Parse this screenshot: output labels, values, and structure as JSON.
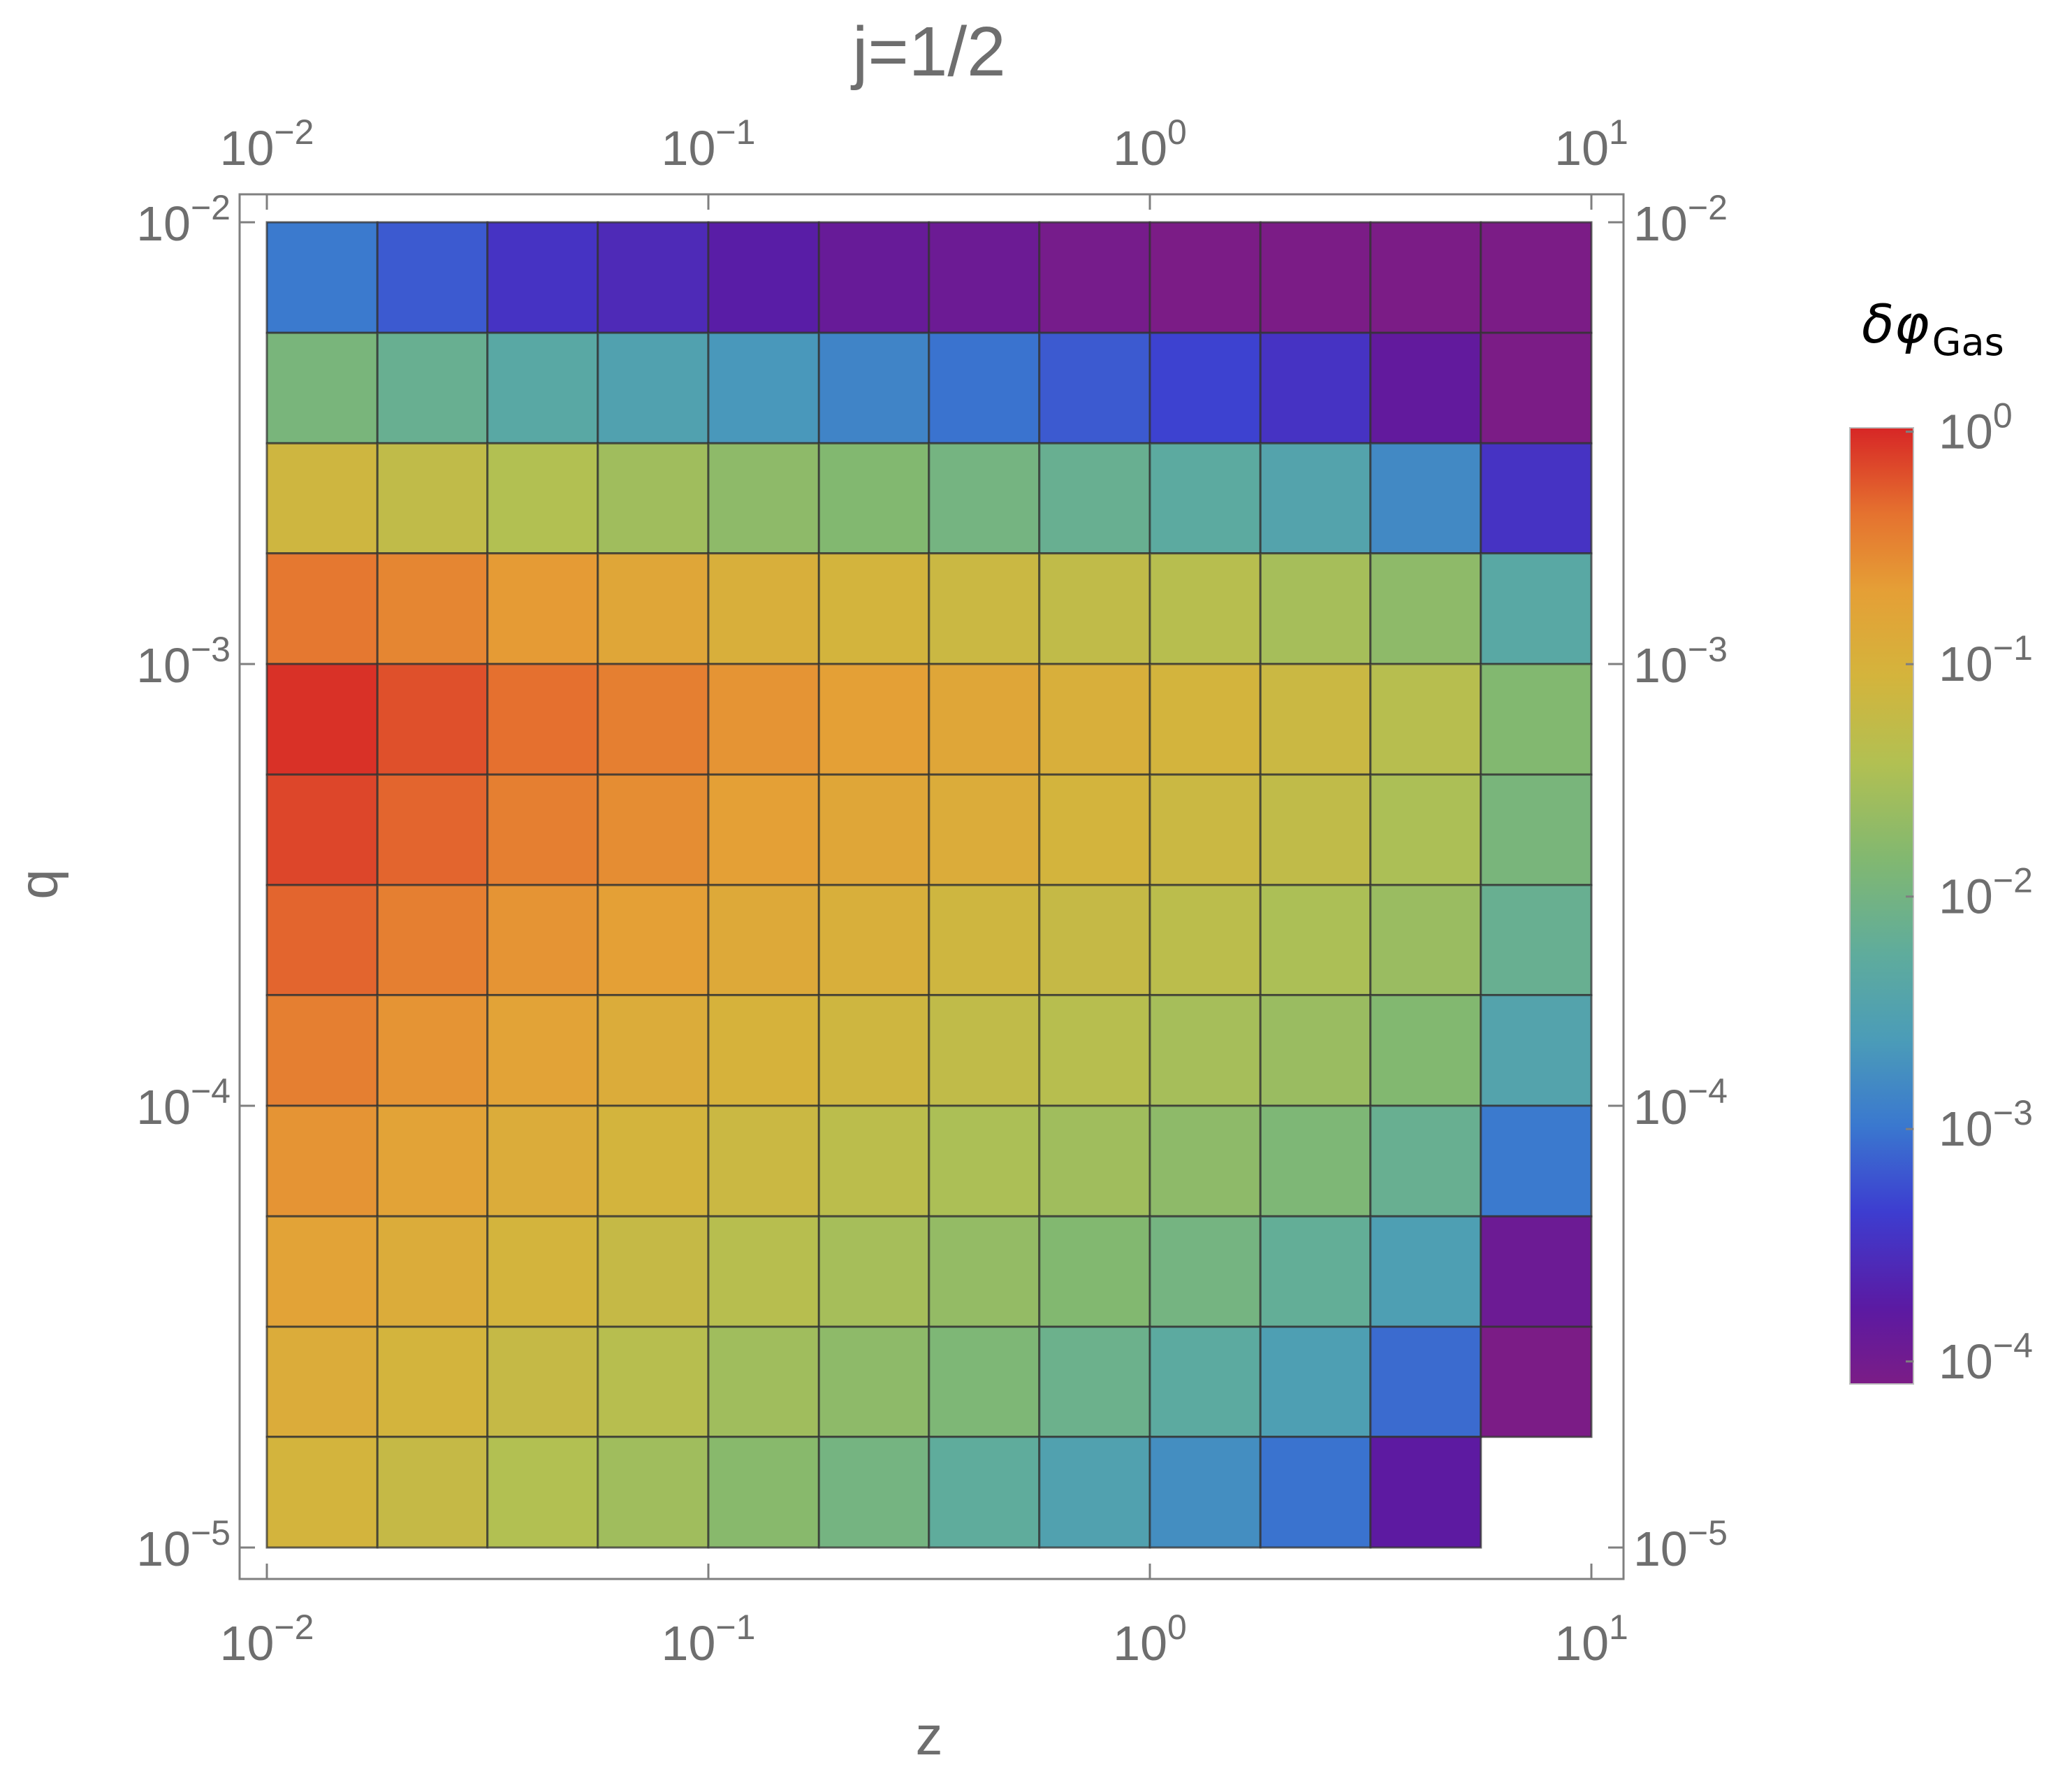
{
  "chart_data": {
    "type": "heatmap",
    "title": "j=1/2",
    "xlabel": "z",
    "ylabel": "q",
    "x_scale": "log",
    "y_scale": "log",
    "xlim": [
      0.01,
      10
    ],
    "ylim": [
      1e-05,
      0.01
    ],
    "x_ticks": [
      {
        "base": "10",
        "exp": "−2"
      },
      {
        "base": "10",
        "exp": "−1"
      },
      {
        "base": "10",
        "exp": "0"
      },
      {
        "base": "10",
        "exp": "1"
      }
    ],
    "y_ticks": [
      {
        "base": "10",
        "exp": "−2"
      },
      {
        "base": "10",
        "exp": "−3"
      },
      {
        "base": "10",
        "exp": "−4"
      },
      {
        "base": "10",
        "exp": "−5"
      }
    ],
    "x_bin_edges": [
      0.01,
      0.0178,
      0.0316,
      0.0562,
      0.1,
      0.178,
      0.316,
      0.562,
      1,
      1.78,
      3.16,
      5.62,
      10
    ],
    "y_bin_edges": [
      1e-05,
      1.78e-05,
      3.16e-05,
      5.62e-05,
      0.0001,
      0.000178,
      0.000316,
      0.000562,
      0.001,
      0.00178,
      0.00316,
      0.00562,
      0.01
    ],
    "colorbar": {
      "title": "δφ",
      "title_subscript": "Gas",
      "scale": "log",
      "range": [
        0.0001,
        1
      ],
      "ticks": [
        {
          "base": "10",
          "exp": "0"
        },
        {
          "base": "10",
          "exp": "−1"
        },
        {
          "base": "10",
          "exp": "−2"
        },
        {
          "base": "10",
          "exp": "−3"
        },
        {
          "base": "10",
          "exp": "−4"
        }
      ]
    },
    "values_log10_rows_top_to_bottom": [
      [
        -2.9,
        -3.1,
        -3.4,
        -3.5,
        -3.65,
        -3.8,
        -3.85,
        -3.95,
        -4.0,
        -4.0,
        -4.0,
        -4.0
      ],
      [
        -1.9,
        -2.1,
        -2.3,
        -2.45,
        -2.6,
        -2.8,
        -2.95,
        -3.1,
        -3.25,
        -3.4,
        -3.75,
        -4.0
      ],
      [
        -1.1,
        -1.25,
        -1.4,
        -1.55,
        -1.7,
        -1.8,
        -1.95,
        -2.1,
        -2.25,
        -2.4,
        -2.75,
        -3.4
      ],
      [
        -0.4,
        -0.5,
        -0.65,
        -0.8,
        -0.95,
        -1.05,
        -1.15,
        -1.25,
        -1.35,
        -1.5,
        -1.7,
        -2.3
      ],
      [
        -0.05,
        -0.2,
        -0.35,
        -0.45,
        -0.6,
        -0.7,
        -0.8,
        -0.95,
        -1.05,
        -1.15,
        -1.35,
        -1.8
      ],
      [
        -0.15,
        -0.3,
        -0.45,
        -0.55,
        -0.7,
        -0.8,
        -0.9,
        -1.05,
        -1.15,
        -1.25,
        -1.45,
        -1.9
      ],
      [
        -0.3,
        -0.45,
        -0.6,
        -0.7,
        -0.85,
        -0.95,
        -1.1,
        -1.2,
        -1.3,
        -1.45,
        -1.6,
        -2.1
      ],
      [
        -0.45,
        -0.6,
        -0.75,
        -0.9,
        -1.0,
        -1.1,
        -1.25,
        -1.35,
        -1.5,
        -1.6,
        -1.8,
        -2.4
      ],
      [
        -0.6,
        -0.75,
        -0.9,
        -1.05,
        -1.15,
        -1.3,
        -1.45,
        -1.55,
        -1.7,
        -1.85,
        -2.1,
        -2.9
      ],
      [
        -0.75,
        -0.9,
        -1.05,
        -1.2,
        -1.35,
        -1.5,
        -1.65,
        -1.8,
        -1.95,
        -2.15,
        -2.5,
        -3.85
      ],
      [
        -0.9,
        -1.05,
        -1.2,
        -1.35,
        -1.55,
        -1.7,
        -1.85,
        -2.05,
        -2.25,
        -2.5,
        -3.0,
        -4.0
      ],
      [
        -1.05,
        -1.2,
        -1.4,
        -1.55,
        -1.75,
        -1.95,
        -2.2,
        -2.45,
        -2.7,
        -2.95,
        -3.7,
        null
      ]
    ]
  }
}
